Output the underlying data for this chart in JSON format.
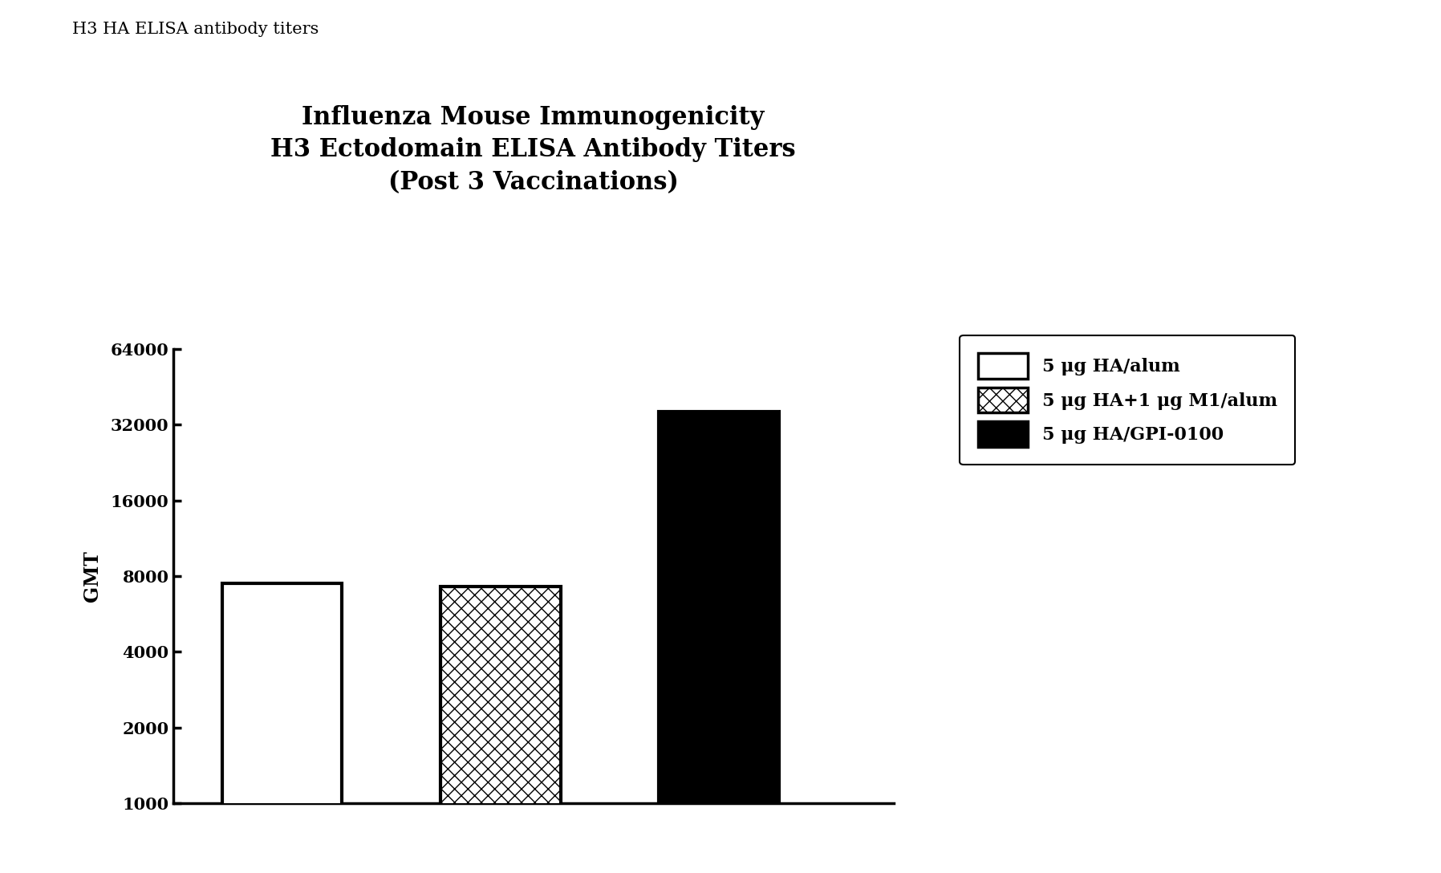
{
  "title_line1": "Influenza Mouse Immunogenicity",
  "title_line2": "H3 Ectodomain ELISA Antibody Titers",
  "title_line3": "(Post 3 Vaccinations)",
  "suptitle": "H3 HA ELISA antibody titers",
  "ylabel": "GMT",
  "values": [
    7500,
    7300,
    36000
  ],
  "ylim_min": 1000,
  "ylim_max": 64000,
  "yticks": [
    1000,
    2000,
    4000,
    8000,
    16000,
    32000,
    64000
  ],
  "ytick_labels": [
    "1000",
    "2000",
    "4000",
    "8000",
    "16000",
    "32000",
    "64000"
  ],
  "legend_labels": [
    "5 μg HA/alum",
    "5 μg HA+1 μg M1/alum",
    "5 μg HA/GPI-0100"
  ],
  "title_fontsize": 22,
  "suptitle_fontsize": 15,
  "ylabel_fontsize": 17,
  "tick_fontsize": 15,
  "legend_fontsize": 16,
  "background_color": "#ffffff",
  "bar_width": 0.55,
  "bar_positions": [
    1,
    2,
    3
  ]
}
